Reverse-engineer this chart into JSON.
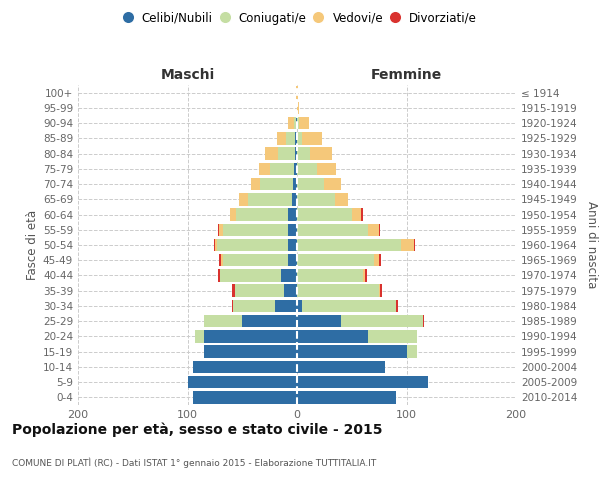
{
  "age_groups": [
    "0-4",
    "5-9",
    "10-14",
    "15-19",
    "20-24",
    "25-29",
    "30-34",
    "35-39",
    "40-44",
    "45-49",
    "50-54",
    "55-59",
    "60-64",
    "65-69",
    "70-74",
    "75-79",
    "80-84",
    "85-89",
    "90-94",
    "95-99",
    "100+"
  ],
  "birth_years": [
    "2010-2014",
    "2005-2009",
    "2000-2004",
    "1995-1999",
    "1990-1994",
    "1985-1989",
    "1980-1984",
    "1975-1979",
    "1970-1974",
    "1965-1969",
    "1960-1964",
    "1955-1959",
    "1950-1954",
    "1945-1949",
    "1940-1944",
    "1935-1939",
    "1930-1934",
    "1925-1929",
    "1920-1924",
    "1915-1919",
    "≤ 1914"
  ],
  "colors": {
    "celibi": "#2e6da4",
    "coniugati": "#c5dea3",
    "vedovi": "#f5c87a",
    "divorziati": "#d9322e"
  },
  "maschi": {
    "celibi": [
      95,
      100,
      95,
      85,
      85,
      50,
      20,
      12,
      15,
      8,
      8,
      8,
      8,
      5,
      4,
      3,
      2,
      2,
      1,
      0,
      0
    ],
    "coniugati": [
      0,
      0,
      0,
      0,
      8,
      35,
      38,
      45,
      55,
      60,
      65,
      60,
      48,
      40,
      30,
      22,
      15,
      8,
      2,
      0,
      0
    ],
    "vedovi": [
      0,
      0,
      0,
      0,
      0,
      0,
      0,
      0,
      0,
      1,
      2,
      3,
      5,
      8,
      8,
      10,
      12,
      8,
      5,
      0,
      1
    ],
    "divorziati": [
      0,
      0,
      0,
      0,
      0,
      0,
      1,
      2,
      2,
      2,
      1,
      1,
      0,
      0,
      0,
      0,
      0,
      0,
      0,
      0,
      0
    ]
  },
  "femmine": {
    "celibi": [
      90,
      120,
      80,
      100,
      65,
      40,
      5,
      0,
      0,
      0,
      0,
      0,
      0,
      0,
      0,
      0,
      0,
      0,
      0,
      0,
      0
    ],
    "coniugati": [
      0,
      0,
      0,
      10,
      45,
      75,
      85,
      75,
      60,
      70,
      95,
      65,
      50,
      35,
      25,
      18,
      12,
      5,
      2,
      0,
      0
    ],
    "vedovi": [
      0,
      0,
      0,
      0,
      0,
      0,
      0,
      1,
      2,
      5,
      12,
      10,
      8,
      12,
      15,
      18,
      20,
      18,
      9,
      2,
      1
    ],
    "divorziati": [
      0,
      0,
      0,
      0,
      0,
      1,
      2,
      2,
      2,
      2,
      1,
      1,
      2,
      0,
      0,
      0,
      0,
      0,
      0,
      0,
      0
    ]
  },
  "title": "Popolazione per età, sesso e stato civile - 2015",
  "subtitle": "COMUNE DI PLATÌ (RC) - Dati ISTAT 1° gennaio 2015 - Elaborazione TUTTITALIA.IT",
  "xlabel_left": "Maschi",
  "xlabel_right": "Femmine",
  "ylabel_left": "Fasce di età",
  "ylabel_right": "Anni di nascita",
  "xlim": 200,
  "legend_labels": [
    "Celibi/Nubili",
    "Coniugati/e",
    "Vedovi/e",
    "Divorziati/e"
  ]
}
